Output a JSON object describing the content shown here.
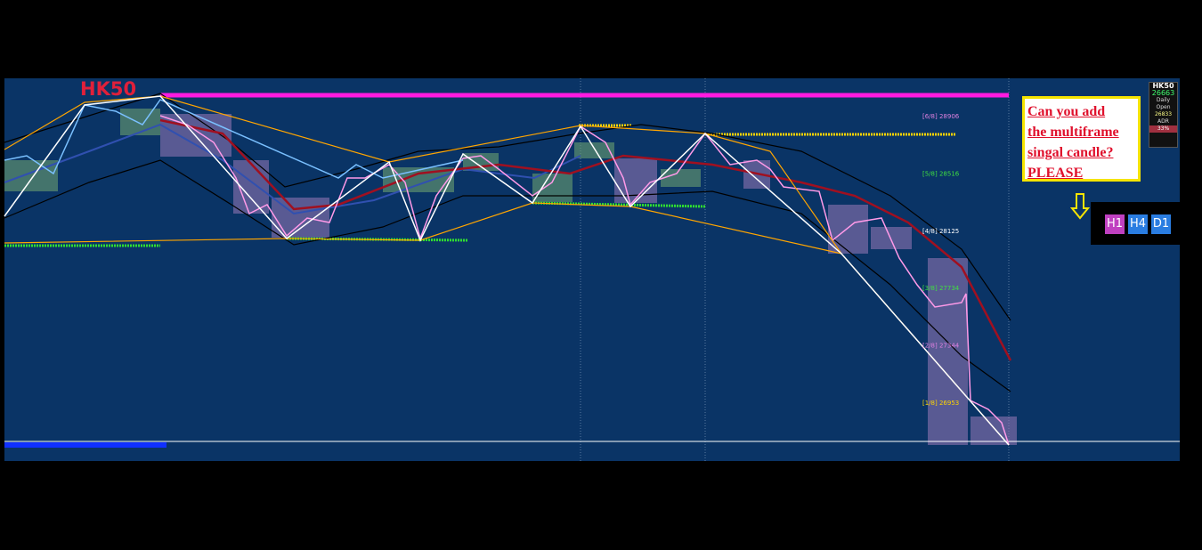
{
  "chart": {
    "symbol": "HK50",
    "levels": [
      "[6/8] 28906",
      "[5/8] 28516",
      "[4/8] 28125",
      "[3/8] 27734",
      "[2/8] 27344",
      "[1/8] 26953"
    ]
  },
  "info_panel": {
    "symbol": "HK50",
    "bid": "26663",
    "daily_open_label": "Daily Open",
    "daily_open": "26833",
    "adr_label": "ADR",
    "adr_pct": "33%"
  },
  "annotation": {
    "lines": [
      "Can you add",
      "the multiframe",
      "singal candle?",
      "PLEASE"
    ]
  },
  "timeframe_buttons": [
    "H1",
    "H4",
    "D1"
  ]
}
